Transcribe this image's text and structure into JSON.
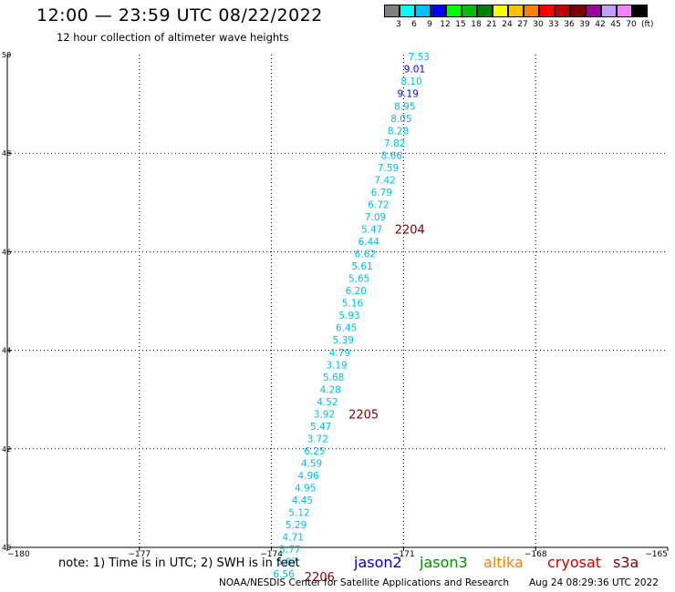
{
  "header": {
    "title": "12:00 — 23:59 UTC 08/22/2022",
    "subtitle": "12 hour collection of altimeter wave heights"
  },
  "scale": {
    "colors": [
      "#808080",
      "#00ffff",
      "#00c0ff",
      "#0000ff",
      "#00ff00",
      "#00c000",
      "#008000",
      "#ffff00",
      "#ffc000",
      "#ff8000",
      "#ff0000",
      "#c00000",
      "#800000",
      "#a000a0",
      "#c0a0ff",
      "#ff80ff",
      "#000000"
    ],
    "labels": [
      "3",
      "6",
      "9",
      "12",
      "15",
      "18",
      "21",
      "24",
      "27",
      "30",
      "33",
      "36",
      "39",
      "42",
      "45",
      "70"
    ],
    "unit": "(ft)"
  },
  "axes": {
    "lon_ticks": [
      "−180",
      "−177",
      "−174",
      "−171",
      "−168",
      "−165"
    ],
    "lat_ticks": [
      "40",
      "42",
      "44",
      "46",
      "48",
      "50"
    ]
  },
  "track": {
    "color_light": "#00c0e0",
    "color_blue": "#0000ff",
    "time_color": "#800000",
    "points": [
      {
        "lon": -170.65,
        "lat": 49.96,
        "swh": "7.53",
        "c": "l"
      },
      {
        "lon": -170.75,
        "lat": 49.71,
        "swh": "9.01",
        "c": "b"
      },
      {
        "lon": -170.82,
        "lat": 49.46,
        "swh": "8.10",
        "c": "l"
      },
      {
        "lon": -170.9,
        "lat": 49.21,
        "swh": "9.19",
        "c": "b"
      },
      {
        "lon": -170.97,
        "lat": 48.96,
        "swh": "8.95",
        "c": "l"
      },
      {
        "lon": -171.05,
        "lat": 48.71,
        "swh": "8.05",
        "c": "l"
      },
      {
        "lon": -171.12,
        "lat": 48.46,
        "swh": "8.28",
        "c": "l"
      },
      {
        "lon": -171.2,
        "lat": 48.21,
        "swh": "7.82",
        "c": "l"
      },
      {
        "lon": -171.27,
        "lat": 47.96,
        "swh": "8.66",
        "c": "l"
      },
      {
        "lon": -171.35,
        "lat": 47.71,
        "swh": "7.59",
        "c": "l"
      },
      {
        "lon": -171.42,
        "lat": 47.46,
        "swh": "7.42",
        "c": "l"
      },
      {
        "lon": -171.5,
        "lat": 47.21,
        "swh": "6.79",
        "c": "l"
      },
      {
        "lon": -171.57,
        "lat": 46.96,
        "swh": "6.72",
        "c": "l"
      },
      {
        "lon": -171.64,
        "lat": 46.71,
        "swh": "7.09",
        "c": "l"
      },
      {
        "lon": -171.72,
        "lat": 46.46,
        "swh": "5.47",
        "c": "l"
      },
      {
        "lon": -171.79,
        "lat": 46.21,
        "swh": "6.44",
        "c": "l"
      },
      {
        "lon": -171.87,
        "lat": 45.96,
        "swh": "6.62",
        "c": "l"
      },
      {
        "lon": -171.94,
        "lat": 45.71,
        "swh": "5.61",
        "c": "l"
      },
      {
        "lon": -172.01,
        "lat": 45.46,
        "swh": "5.65",
        "c": "l"
      },
      {
        "lon": -172.08,
        "lat": 45.21,
        "swh": "6.20",
        "c": "l"
      },
      {
        "lon": -172.16,
        "lat": 44.96,
        "swh": "5.16",
        "c": "l"
      },
      {
        "lon": -172.23,
        "lat": 44.71,
        "swh": "5.93",
        "c": "l"
      },
      {
        "lon": -172.3,
        "lat": 44.46,
        "swh": "6.45",
        "c": "l"
      },
      {
        "lon": -172.37,
        "lat": 44.21,
        "swh": "5.39",
        "c": "l"
      },
      {
        "lon": -172.45,
        "lat": 43.96,
        "swh": "4.79",
        "c": "l"
      },
      {
        "lon": -172.52,
        "lat": 43.71,
        "swh": "3.19",
        "c": "l"
      },
      {
        "lon": -172.59,
        "lat": 43.46,
        "swh": "5.68",
        "c": "l"
      },
      {
        "lon": -172.66,
        "lat": 43.21,
        "swh": "4.28",
        "c": "l"
      },
      {
        "lon": -172.73,
        "lat": 42.96,
        "swh": "4.52",
        "c": "l"
      },
      {
        "lon": -172.8,
        "lat": 42.71,
        "swh": "3.92",
        "c": "l"
      },
      {
        "lon": -172.88,
        "lat": 42.46,
        "swh": "5.47",
        "c": "l"
      },
      {
        "lon": -172.95,
        "lat": 42.21,
        "swh": "3.72",
        "c": "l"
      },
      {
        "lon": -173.02,
        "lat": 41.96,
        "swh": "6.25",
        "c": "l"
      },
      {
        "lon": -173.09,
        "lat": 41.71,
        "swh": "4.59",
        "c": "l"
      },
      {
        "lon": -173.16,
        "lat": 41.46,
        "swh": "4.96",
        "c": "l"
      },
      {
        "lon": -173.23,
        "lat": 41.21,
        "swh": "4.95",
        "c": "l"
      },
      {
        "lon": -173.3,
        "lat": 40.96,
        "swh": "4.45",
        "c": "l"
      },
      {
        "lon": -173.37,
        "lat": 40.71,
        "swh": "5.12",
        "c": "l"
      },
      {
        "lon": -173.44,
        "lat": 40.46,
        "swh": "5.29",
        "c": "l"
      },
      {
        "lon": -173.51,
        "lat": 40.21,
        "swh": "4.71",
        "c": "l"
      },
      {
        "lon": -173.58,
        "lat": 39.96,
        "swh": "5.77",
        "c": "l"
      },
      {
        "lon": -173.65,
        "lat": 39.71,
        "swh": "5.87",
        "c": "l"
      },
      {
        "lon": -173.72,
        "lat": 39.46,
        "swh": "6.56",
        "c": "l"
      }
    ],
    "time_labels": [
      {
        "text": "2204",
        "lon": -171.2,
        "lat": 46.46
      },
      {
        "text": "2205",
        "lon": -172.25,
        "lat": 42.71
      },
      {
        "text": "2206",
        "lon": -173.25,
        "lat": 39.41
      }
    ]
  },
  "footer": {
    "note": "note:  1) Time is in UTC;  2) SWH is in feet",
    "legend": [
      {
        "name": "jason2",
        "color": "#0000cc"
      },
      {
        "name": "jason3",
        "color": "#009000"
      },
      {
        "name": "altika",
        "color": "#ff8000"
      },
      {
        "name": "cryosat",
        "color": "#cc0000"
      },
      {
        "name": "s3a",
        "color": "#800000"
      }
    ],
    "credit": "NOAA/NESDIS Center for Satellite Applications and Research",
    "timestamp": "Aug 24 08:29:36 UTC 2022"
  }
}
